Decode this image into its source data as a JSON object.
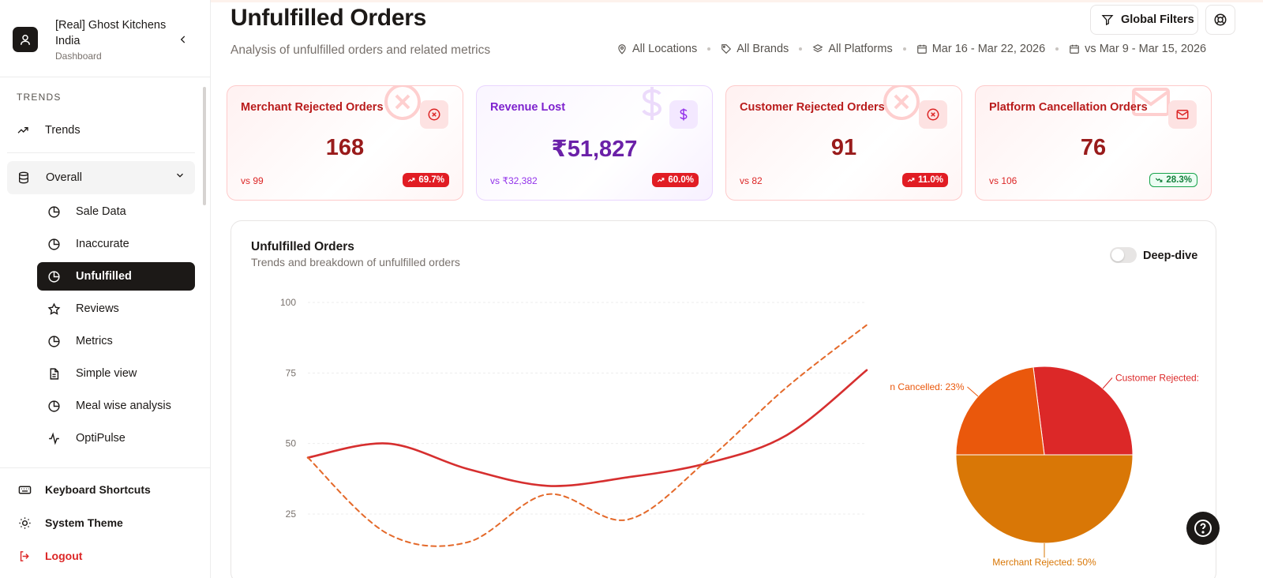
{
  "sidebar": {
    "brand_title": "[Real] Ghost Kitchens India",
    "brand_sub": "Dashboard",
    "section_label": "TRENDS",
    "trends_label": "Trends",
    "overall_label": "Overall",
    "sub_items": [
      {
        "label": "Sale Data",
        "icon": "pie-icon"
      },
      {
        "label": "Inaccurate",
        "icon": "pie-icon"
      },
      {
        "label": "Unfulfilled",
        "icon": "pie-icon",
        "active": true
      },
      {
        "label": "Reviews",
        "icon": "star-icon"
      },
      {
        "label": "Metrics",
        "icon": "pie-icon"
      },
      {
        "label": "Simple view",
        "icon": "document-icon"
      },
      {
        "label": "Meal wise analysis",
        "icon": "pie-icon"
      },
      {
        "label": "OptiPulse",
        "icon": "pulse-icon"
      }
    ],
    "keyboard_shortcuts": "Keyboard Shortcuts",
    "system_theme": "System Theme",
    "logout": "Logout"
  },
  "header": {
    "title": "Unfulfilled Orders",
    "subtitle": "Analysis of unfulfilled orders and related metrics",
    "global_filters": "Global Filters",
    "meta": {
      "locations": "All Locations",
      "brands": "All Brands",
      "platforms": "All Platforms",
      "date_range": "Mar 16 - Mar 22, 2026",
      "compare_range": "vs Mar 9 - Mar 15, 2026"
    }
  },
  "kpis": [
    {
      "title": "Merchant Rejected Orders",
      "value": "168",
      "vs": "vs 99",
      "change": "69.7%",
      "trend": "up",
      "icon": "x-circle-icon"
    },
    {
      "title": "Revenue Lost",
      "value": "₹51,827",
      "vs": "vs ₹32,382",
      "change": "60.0%",
      "trend": "up",
      "icon": "dollar-icon"
    },
    {
      "title": "Customer Rejected Orders",
      "value": "91",
      "vs": "vs 82",
      "change": "11.0%",
      "trend": "up",
      "icon": "x-circle-icon"
    },
    {
      "title": "Platform Cancellation Orders",
      "value": "76",
      "vs": "vs 106",
      "change": "28.3%",
      "trend": "down",
      "icon": "mail-icon"
    }
  ],
  "chart_card": {
    "title": "Unfulfilled Orders",
    "subtitle": "Trends and breakdown of unfulfilled orders",
    "toggle_label": "Deep-dive",
    "toggle_on": false
  },
  "colors": {
    "solid_line": "#d62f2f",
    "dashed_line": "#e4692a",
    "customer_rejected": "#dc2828",
    "platform_cancelled": "#ea580c",
    "merchant_rejected": "#d97706"
  },
  "chart_data": [
    {
      "type": "line",
      "yticks": [
        25,
        50,
        75,
        100
      ],
      "ylim": [
        0,
        100
      ],
      "x": [
        0,
        1,
        2,
        3,
        4,
        5,
        6,
        7
      ],
      "series": [
        {
          "style": "solid",
          "values": [
            45,
            50,
            41,
            35,
            38,
            43,
            53,
            76
          ]
        },
        {
          "style": "dashed",
          "values": [
            45,
            18,
            15,
            32,
            23,
            44,
            70,
            92
          ]
        }
      ]
    },
    {
      "type": "pie",
      "slices": [
        {
          "label": "Customer Rejected:",
          "value": 27
        },
        {
          "label": "n Cancelled: 23%",
          "value": 23
        },
        {
          "label": "Merchant Rejected: 50%",
          "value": 50
        }
      ]
    }
  ]
}
